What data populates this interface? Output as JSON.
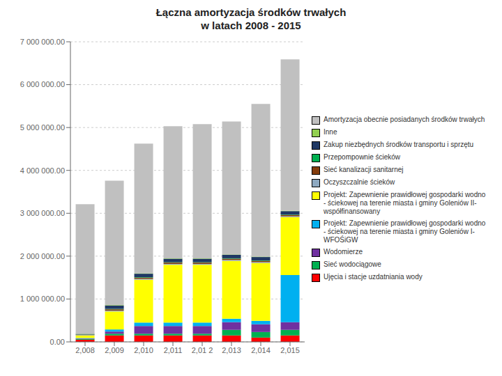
{
  "chart_data": {
    "type": "bar",
    "stacked": true,
    "title": "Łączna amortyzacja środków trwałych\nw latach 2008 - 2015",
    "categories": [
      "2,008",
      "2,009",
      "2,010",
      "2,011",
      "2,01 2",
      "2,013",
      "2,014",
      "2,015"
    ],
    "series": [
      {
        "name": "Ujęcia i stacje uzdatniania wody",
        "color": "#FF0000",
        "values": [
          50000,
          150000,
          150000,
          150000,
          150000,
          150000,
          100000,
          150000
        ]
      },
      {
        "name": "Sieć wodociągowe",
        "color": "#00B050",
        "values": [
          20000,
          40000,
          40000,
          40000,
          40000,
          130000,
          130000,
          130000
        ]
      },
      {
        "name": "Wodomierze",
        "color": "#7030A0",
        "values": [
          10000,
          50000,
          180000,
          180000,
          180000,
          180000,
          180000,
          180000
        ]
      },
      {
        "name": "Projekt: Zapewnienie prawidłowej gospodarki wodno\n- ściekowej na terenie miasta i gminy Goleniów I-\nWFOŚiGW",
        "color": "#00B0F0",
        "values": [
          10000,
          50000,
          80000,
          80000,
          80000,
          80000,
          80000,
          1100000
        ]
      },
      {
        "name": "Projekt: Zapewnienie prawidłowej gospodarki wodno\n- ściekowej na terenie miasta i gminy Goleniów II-\nwspółfinansowany",
        "color": "#FFFF00",
        "values": [
          60000,
          420000,
          1000000,
          1350000,
          1350000,
          1350000,
          1350000,
          1350000
        ]
      },
      {
        "name": "Oczyszczalnie ścieków",
        "color": "#8EA9C1",
        "values": [
          10000,
          20000,
          20000,
          20000,
          20000,
          20000,
          20000,
          20000
        ]
      },
      {
        "name": "Sieć kanalizacji sanitarnej",
        "color": "#843C0C",
        "values": [
          10000,
          30000,
          30000,
          30000,
          30000,
          30000,
          30000,
          30000
        ]
      },
      {
        "name": "Przepompownie ścieków",
        "color": "#00B050",
        "values": [
          5000,
          10000,
          10000,
          10000,
          10000,
          10000,
          10000,
          10000
        ]
      },
      {
        "name": "Zakup niezbędnych środków transportu i sprzętu",
        "color": "#1F3864",
        "values": [
          10000,
          80000,
          80000,
          80000,
          80000,
          80000,
          80000,
          80000
        ]
      },
      {
        "name": "Inne",
        "color": "#92D050",
        "values": [
          5000,
          10000,
          10000,
          10000,
          10000,
          10000,
          10000,
          10000
        ]
      },
      {
        "name": "Amortyzacja obecnie posiadanych środków trwałych",
        "color": "#C0C0C0",
        "values": [
          3020000,
          2900000,
          3025000,
          3080000,
          3130000,
          3100000,
          3560000,
          3530000
        ]
      }
    ],
    "ylim": [
      0,
      7000000
    ],
    "yticks": [
      {
        "value": 0,
        "label": "0.00"
      },
      {
        "value": 1000000,
        "label": "1 000 000.00"
      },
      {
        "value": 2000000,
        "label": "2 000 000.00"
      },
      {
        "value": 3000000,
        "label": "3 000 000.00"
      },
      {
        "value": 4000000,
        "label": "4 000 000.00"
      },
      {
        "value": 5000000,
        "label": "5 000 000.00"
      },
      {
        "value": 6000000,
        "label": "6 000 000.00"
      },
      {
        "value": 7000000,
        "label": "7 000 000.00"
      }
    ],
    "grid": true,
    "legend": "right"
  }
}
